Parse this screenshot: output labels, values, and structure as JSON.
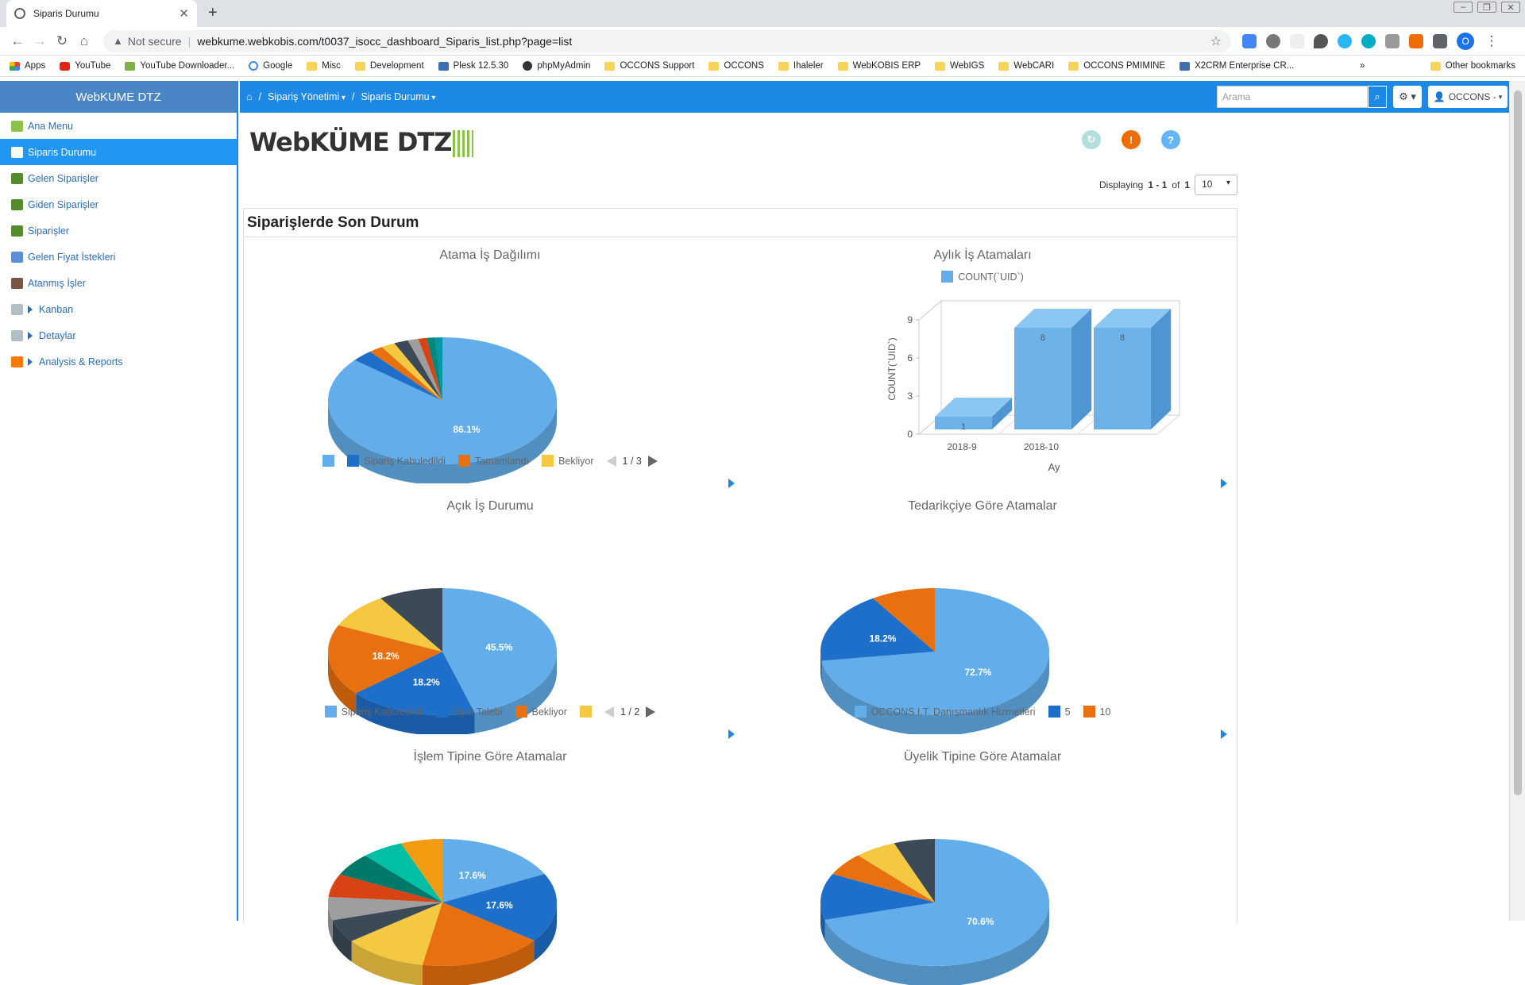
{
  "browser": {
    "tab_title": "Siparis Durumu",
    "security_label": "Not secure",
    "url": "webkume.webkobis.com/t0037_isocc_dashboard_Siparis_list.php?page=list",
    "bookmarks": [
      "Apps",
      "YouTube",
      "YouTube Downloader...",
      "Google",
      "Misc",
      "Development",
      "Plesk 12.5.30",
      "phpMyAdmin",
      "OCCONS Support",
      "OCCONS",
      "Ihaleler",
      "WebKOBIS ERP",
      "WebIGS",
      "WebCARI",
      "OCCONS PMIMINE",
      "X2CRM Enterprise CR..."
    ],
    "other_bookmarks": "Other bookmarks",
    "profile_initial": "O"
  },
  "sidebar": {
    "brand": "WebKUME DTZ",
    "items": [
      {
        "label": "Ana Menu",
        "color": "#8bc34a"
      },
      {
        "label": "Siparis Durumu",
        "color": "#ffffff"
      },
      {
        "label": "Gelen Siparişler",
        "color": "#558b2f"
      },
      {
        "label": "Giden Siparişler",
        "color": "#558b2f"
      },
      {
        "label": "Siparişler",
        "color": "#558b2f"
      },
      {
        "label": "Gelen Fiyat İstekleri",
        "color": "#5c8fd6"
      },
      {
        "label": "Atanmış İşler",
        "color": "#795548"
      },
      {
        "label": "Kanban",
        "color": "#b0bec5"
      },
      {
        "label": "Detaylar",
        "color": "#b0bec5"
      },
      {
        "label": "Analysis & Reports",
        "color": "#f57c00"
      }
    ]
  },
  "topbar": {
    "breadcrumb": [
      "Sipariş Yönetimi",
      "Siparis Durumu"
    ],
    "search_placeholder": "Arama",
    "user_label": "OCCONS -"
  },
  "main": {
    "logo_text": "WebKÜME DTZ",
    "displaying_prefix": "Displaying",
    "displaying_range": "1 - 1",
    "displaying_of": "of",
    "displaying_total": "1",
    "per_page": "10",
    "panel_title": "Siparişlerde Son Durum"
  },
  "chart_data": [
    {
      "type": "pie",
      "title": "Atama İş Dağılımı",
      "slices": [
        {
          "label": "",
          "value": 86.1,
          "color": "#63aeea"
        },
        {
          "label": "Sipariş Kabuledildi",
          "value": 3.0,
          "color": "#1e6fc9"
        },
        {
          "label": "Tamamlandı",
          "value": 2.0,
          "color": "#e8700e"
        },
        {
          "label": "Bekliyor",
          "value": 2.0,
          "color": "#f5c842"
        },
        {
          "label": "",
          "value": 2.0,
          "color": "#3c4a57"
        },
        {
          "label": "",
          "value": 1.5,
          "color": "#9e9e9e"
        },
        {
          "label": "",
          "value": 1.2,
          "color": "#d84315"
        },
        {
          "label": "",
          "value": 1.2,
          "color": "#00897b"
        },
        {
          "label": "",
          "value": 1.0,
          "color": "#0097a7"
        }
      ],
      "visible_labels": [
        "86.1%"
      ],
      "legend_pager": "1 / 3"
    },
    {
      "type": "bar",
      "title": "Aylık İş Atamaları",
      "legend": [
        "COUNT(`UID`)"
      ],
      "categories": [
        "2018-9",
        "2018-10",
        ""
      ],
      "values": [
        1,
        8,
        8
      ],
      "xlabel": "Ay",
      "ylabel": "COUNT(`UID`)",
      "yticks": [
        0,
        3,
        6,
        9
      ],
      "ylim": [
        0,
        9
      ]
    },
    {
      "type": "pie",
      "title": "Açık İş Durumu",
      "slices": [
        {
          "label": "Sipariş Kabuledildi",
          "value": 45.5,
          "color": "#63aeea"
        },
        {
          "label": "Fiyat Talebi",
          "value": 18.2,
          "color": "#1e6fc9"
        },
        {
          "label": "Bekliyor",
          "value": 18.2,
          "color": "#e8700e"
        },
        {
          "label": "",
          "value": 9.1,
          "color": "#f5c842"
        },
        {
          "label": "",
          "value": 9.1,
          "color": "#3c4a57"
        }
      ],
      "visible_labels": [
        "45.5%",
        "18.2%",
        "18.2%"
      ],
      "legend_pager": "1 / 2"
    },
    {
      "type": "pie",
      "title": "Tedarikçiye Göre Atamalar",
      "slices": [
        {
          "label": "OCCONS I.T. Danışmanlık Hizmetleri",
          "value": 72.7,
          "color": "#63aeea"
        },
        {
          "label": "5",
          "value": 18.2,
          "color": "#1e6fc9"
        },
        {
          "label": "10",
          "value": 9.1,
          "color": "#e8700e"
        }
      ],
      "visible_labels": [
        "72.7%",
        "18.2%"
      ]
    },
    {
      "type": "pie",
      "title": "İşlem Tipine Göre Atamalar",
      "slices": [
        {
          "label": "",
          "value": 17.6,
          "color": "#63aeea"
        },
        {
          "label": "",
          "value": 17.6,
          "color": "#1e6fc9"
        },
        {
          "label": "",
          "value": 17.6,
          "color": "#e8700e"
        },
        {
          "label": "",
          "value": 11.8,
          "color": "#f5c842"
        },
        {
          "label": "",
          "value": 5.9,
          "color": "#3c4a57"
        },
        {
          "label": "",
          "value": 5.9,
          "color": "#9e9e9e"
        },
        {
          "label": "",
          "value": 5.9,
          "color": "#d84315"
        },
        {
          "label": "",
          "value": 5.9,
          "color": "#00796b"
        },
        {
          "label": "",
          "value": 5.9,
          "color": "#00bfa5"
        },
        {
          "label": "",
          "value": 5.9,
          "color": "#f39c12"
        }
      ],
      "visible_labels": [
        "17.6%",
        "17.6%"
      ]
    },
    {
      "type": "pie",
      "title": "Üyelik Tipine Göre Atamalar",
      "slices": [
        {
          "label": "",
          "value": 70.6,
          "color": "#63aeea"
        },
        {
          "label": "",
          "value": 11.8,
          "color": "#1e6fc9"
        },
        {
          "label": "",
          "value": 5.9,
          "color": "#e8700e"
        },
        {
          "label": "",
          "value": 5.9,
          "color": "#f5c842"
        },
        {
          "label": "",
          "value": 5.8,
          "color": "#3c4a57"
        }
      ],
      "visible_labels": [
        "70.6%"
      ]
    }
  ]
}
